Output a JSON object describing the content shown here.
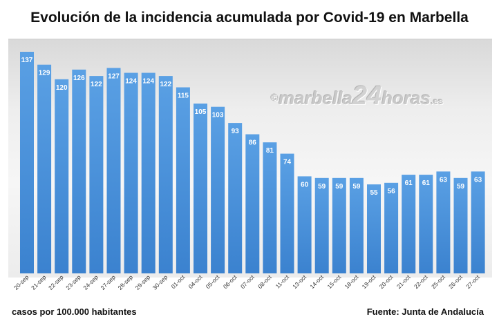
{
  "chart_data": {
    "type": "bar",
    "title": "Evolución de la incidencia acumulada por Covid-19 en Marbella",
    "categories": [
      "20-sep",
      "21-sep",
      "22-sep",
      "23-sep",
      "24-sep",
      "27-sep",
      "28-sep",
      "29-sep",
      "30-sep",
      "01-oct",
      "04-oct",
      "05-oct",
      "06-oct",
      "07-oct",
      "08-oct",
      "11-oct",
      "13-oct",
      "14-oct",
      "15-oct",
      "18-oct",
      "19-oct",
      "20-oct",
      "21-oct",
      "22-oct",
      "25-oct",
      "26-oct",
      "27-oct"
    ],
    "values": [
      137,
      129,
      120,
      126,
      122,
      127,
      124,
      124,
      122,
      115,
      105,
      103,
      93,
      86,
      81,
      74,
      60,
      59,
      59,
      59,
      55,
      56,
      61,
      61,
      63,
      59,
      63
    ],
    "xlabel": "",
    "ylabel": "casos por 100.000 habitantes",
    "ylim": [
      0,
      140
    ],
    "grid": false,
    "bar_color": "#4a90d9",
    "label_color": "#ffffff",
    "source": "Fuente: Junta de Andalucía"
  },
  "watermark": {
    "copyright": "©",
    "part1": "marbella",
    "part2": "24",
    "part3": "horas",
    "part4": ".es"
  },
  "footer": {
    "units": "casos por 100.000 habitantes",
    "source": "Fuente: Junta de Andalucía"
  }
}
